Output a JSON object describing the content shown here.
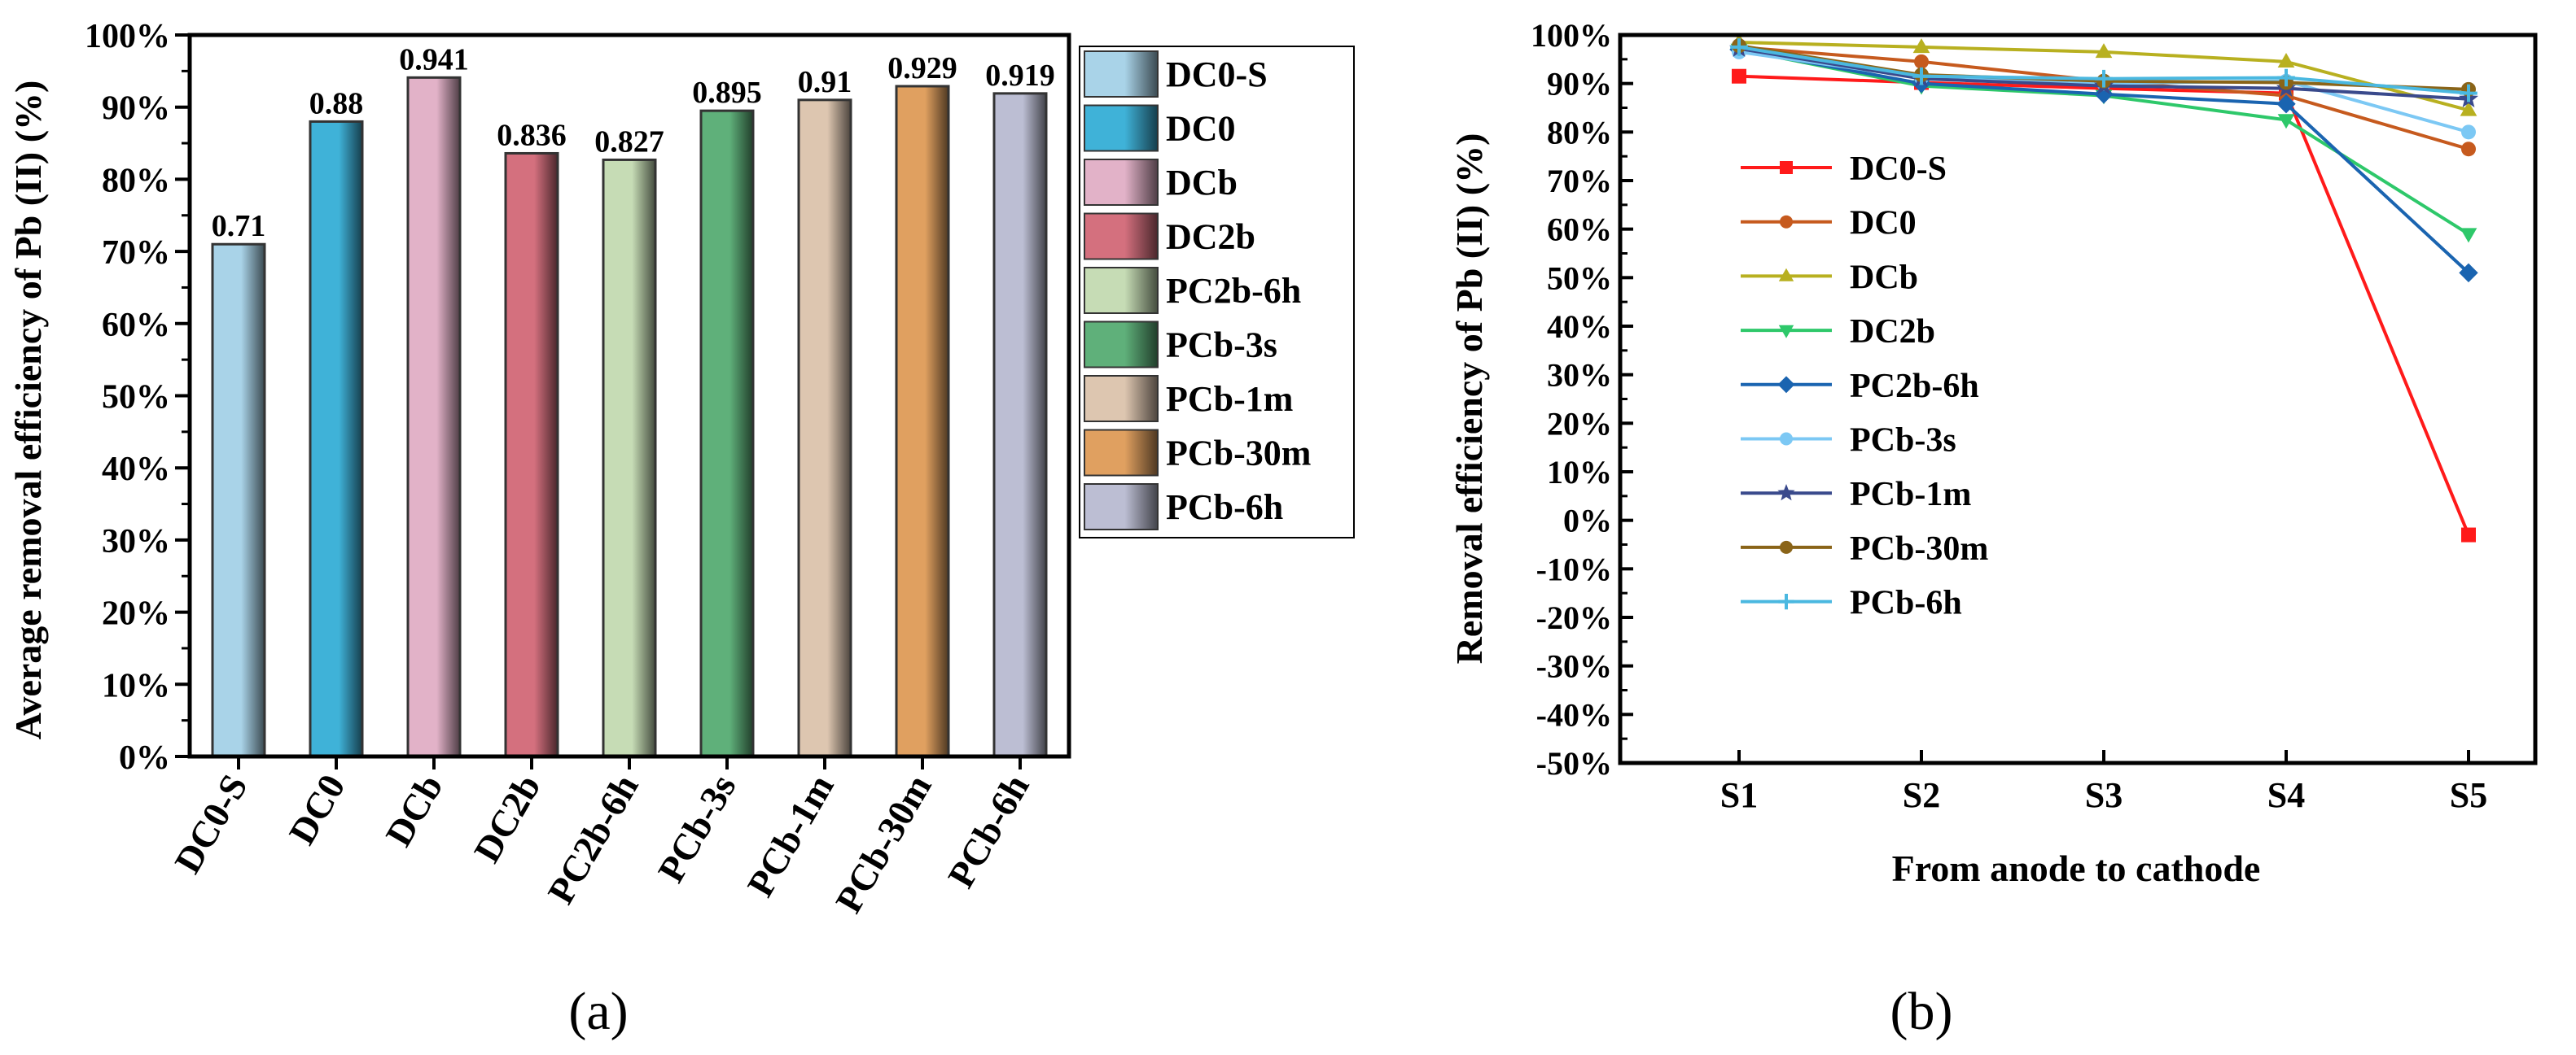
{
  "chart_data": [
    {
      "type": "bar",
      "panel_label": "(a)",
      "ylabel": "Average removal efficiency of Pb (II) (%)",
      "ylim": [
        0,
        1
      ],
      "yticks": [
        "0%",
        "10%",
        "20%",
        "30%",
        "40%",
        "50%",
        "60%",
        "70%",
        "80%",
        "90%",
        "100%"
      ],
      "categories": [
        "DC0-S",
        "DC0",
        "DCb",
        "DC2b",
        "PC2b-6h",
        "PCb-3s",
        "PCb-1m",
        "PCb-30m",
        "PCb-6h"
      ],
      "values": [
        0.71,
        0.88,
        0.941,
        0.836,
        0.827,
        0.895,
        0.91,
        0.929,
        0.919
      ],
      "value_labels": [
        "0.71",
        "0.88",
        "0.941",
        "0.836",
        "0.827",
        "0.895",
        "0.91",
        "0.929",
        "0.919"
      ],
      "colors": [
        "#a9d3e8",
        "#3fb2d8",
        "#e2b2c8",
        "#d4707e",
        "#c6dcb5",
        "#5fb07a",
        "#ddc6b0",
        "#e0a060",
        "#bcbed3"
      ],
      "legend": [
        "DC0-S",
        "DC0",
        "DCb",
        "DC2b",
        "PC2b-6h",
        "PCb-3s",
        "PCb-1m",
        "PCb-30m",
        "PCb-6h"
      ],
      "legend_position": "right"
    },
    {
      "type": "line",
      "panel_label": "(b)",
      "xlabel": "From anode to cathode",
      "ylabel": "Removal efficiency of Pb (II) (%)",
      "ylim": [
        -50,
        100
      ],
      "yticks": [
        "-50%",
        "-40%",
        "-30%",
        "-20%",
        "-10%",
        "0%",
        "10%",
        "20%",
        "30%",
        "40%",
        "50%",
        "60%",
        "70%",
        "80%",
        "90%",
        "100%"
      ],
      "x": [
        "S1",
        "S2",
        "S3",
        "S4",
        "S5"
      ],
      "legend_position": "left",
      "series": [
        {
          "name": "DC0-S",
          "color": "#ff1a1a",
          "marker": "square",
          "values": [
            91.5,
            90.2,
            89.0,
            88.0,
            -3.0
          ]
        },
        {
          "name": "DC0",
          "color": "#c65a1e",
          "marker": "circle",
          "values": [
            97.5,
            94.5,
            90.5,
            87.5,
            76.5
          ]
        },
        {
          "name": "DCb",
          "color": "#b8b020",
          "marker": "triangle-up",
          "values": [
            98.5,
            97.5,
            96.5,
            94.5,
            84.5
          ]
        },
        {
          "name": "DC2b",
          "color": "#2ec86a",
          "marker": "triangle-down",
          "values": [
            97.0,
            89.5,
            87.5,
            82.5,
            59.0
          ]
        },
        {
          "name": "PC2b-6h",
          "color": "#1a64b0",
          "marker": "diamond",
          "values": [
            97.0,
            90.0,
            87.8,
            85.8,
            51.0
          ]
        },
        {
          "name": "PCb-3s",
          "color": "#7cc8f4",
          "marker": "circle",
          "values": [
            96.5,
            91.2,
            90.0,
            90.5,
            80.0
          ]
        },
        {
          "name": "PCb-1m",
          "color": "#3a4a8c",
          "marker": "star",
          "values": [
            97.2,
            91.0,
            89.5,
            89.0,
            86.8
          ]
        },
        {
          "name": "PCb-30m",
          "color": "#8a6418",
          "marker": "circle",
          "values": [
            97.8,
            91.8,
            90.5,
            90.2,
            88.8
          ]
        },
        {
          "name": "PCb-6h",
          "color": "#4ab8e0",
          "marker": "plus",
          "values": [
            97.5,
            91.5,
            91.0,
            91.2,
            88.0
          ]
        }
      ]
    }
  ]
}
